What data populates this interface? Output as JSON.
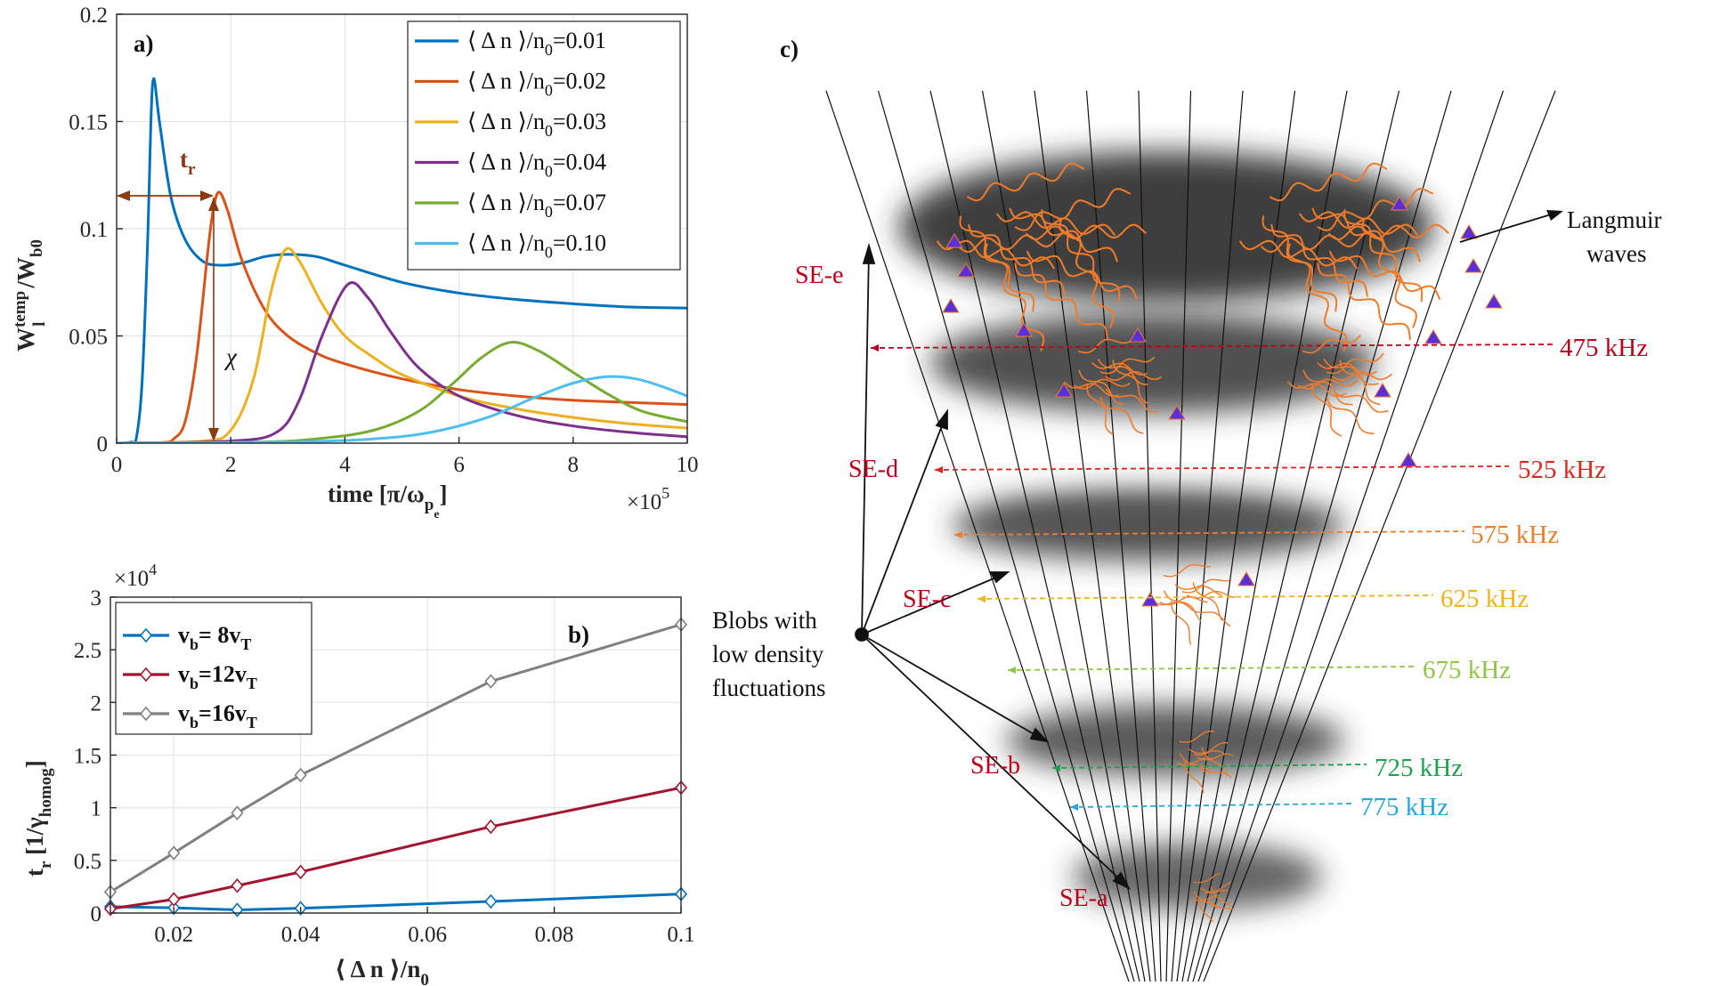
{
  "chart_data": [
    {
      "panel": "a)",
      "type": "line",
      "xlabel": "time [π/ω",
      "xlabel_sub": "p",
      "xlabel_subsub": "e",
      "xlabel_end": "]",
      "ylabel": "W",
      "ylabel_sup": "temp",
      "ylabel_sub": "l",
      "ylabel_den": "/W",
      "ylabel_den_sub": "b0",
      "x_exponent_base": "×10",
      "x_exponent": "5",
      "xlim": [
        0,
        10
      ],
      "ylim": [
        0,
        0.2
      ],
      "xticks": [
        "0",
        "2",
        "4",
        "6",
        "8",
        "10"
      ],
      "yticks": [
        "0",
        "0.05",
        "0.1",
        "0.15",
        "0.2"
      ],
      "annotations": {
        "tr": "t",
        "tr_sub": "r",
        "chi": "χ"
      },
      "series": [
        {
          "name": "⟨ Δ n ⟩/n",
          "sub": "0",
          "value_text": "=0.01",
          "color": "#0072BD",
          "points": [
            [
              0,
              0
            ],
            [
              0.25,
              0.0005
            ],
            [
              0.35,
              0.003
            ],
            [
              0.45,
              0.03
            ],
            [
              0.55,
              0.1
            ],
            [
              0.6,
              0.15
            ],
            [
              0.65,
              0.17
            ],
            [
              0.75,
              0.15
            ],
            [
              0.95,
              0.115
            ],
            [
              1.2,
              0.095
            ],
            [
              1.5,
              0.085
            ],
            [
              1.8,
              0.083
            ],
            [
              2.2,
              0.084
            ],
            [
              2.6,
              0.087
            ],
            [
              3.0,
              0.088
            ],
            [
              3.5,
              0.087
            ],
            [
              4.0,
              0.083
            ],
            [
              5.0,
              0.075
            ],
            [
              6.0,
              0.07
            ],
            [
              7.0,
              0.067
            ],
            [
              8.0,
              0.065
            ],
            [
              9.0,
              0.0635
            ],
            [
              10.0,
              0.063
            ]
          ]
        },
        {
          "name": "⟨ Δ n ⟩/n",
          "sub": "0",
          "value_text": "=0.02",
          "color": "#D95319",
          "points": [
            [
              0,
              0
            ],
            [
              0.8,
              0.0003
            ],
            [
              1.0,
              0.002
            ],
            [
              1.2,
              0.01
            ],
            [
              1.4,
              0.04
            ],
            [
              1.6,
              0.09
            ],
            [
              1.7,
              0.11
            ],
            [
              1.8,
              0.117
            ],
            [
              1.95,
              0.108
            ],
            [
              2.2,
              0.085
            ],
            [
              2.6,
              0.062
            ],
            [
              3.0,
              0.05
            ],
            [
              3.5,
              0.042
            ],
            [
              4.0,
              0.037
            ],
            [
              5.0,
              0.03
            ],
            [
              6.0,
              0.025
            ],
            [
              7.0,
              0.022
            ],
            [
              8.0,
              0.02
            ],
            [
              9.0,
              0.019
            ],
            [
              10.0,
              0.018
            ]
          ]
        },
        {
          "name": "⟨ Δ n ⟩/n",
          "sub": "0",
          "value_text": "=0.03",
          "color": "#EDB120",
          "points": [
            [
              0,
              0
            ],
            [
              1.5,
              0.001
            ],
            [
              2.0,
              0.006
            ],
            [
              2.4,
              0.03
            ],
            [
              2.7,
              0.07
            ],
            [
              2.95,
              0.09
            ],
            [
              3.2,
              0.085
            ],
            [
              3.6,
              0.065
            ],
            [
              4.0,
              0.05
            ],
            [
              4.5,
              0.04
            ],
            [
              5.0,
              0.032
            ],
            [
              6.0,
              0.022
            ],
            [
              7.0,
              0.016
            ],
            [
              8.0,
              0.012
            ],
            [
              9.0,
              0.009
            ],
            [
              10.0,
              0.007
            ]
          ]
        },
        {
          "name": "⟨ Δ n ⟩/n",
          "sub": "0",
          "value_text": "=0.04",
          "color": "#7E2F8E",
          "points": [
            [
              0,
              0
            ],
            [
              2.0,
              0.001
            ],
            [
              2.8,
              0.005
            ],
            [
              3.2,
              0.02
            ],
            [
              3.6,
              0.05
            ],
            [
              4.05,
              0.074
            ],
            [
              4.4,
              0.068
            ],
            [
              4.8,
              0.052
            ],
            [
              5.3,
              0.035
            ],
            [
              6.0,
              0.022
            ],
            [
              7.0,
              0.013
            ],
            [
              8.0,
              0.008
            ],
            [
              9.0,
              0.005
            ],
            [
              10.0,
              0.003
            ]
          ]
        },
        {
          "name": "⟨ Δ n ⟩/n",
          "sub": "0",
          "value_text": "=0.07",
          "color": "#77AC30",
          "points": [
            [
              0,
              0
            ],
            [
              2.5,
              0.0005
            ],
            [
              3.5,
              0.002
            ],
            [
              4.5,
              0.006
            ],
            [
              5.3,
              0.015
            ],
            [
              5.9,
              0.028
            ],
            [
              6.4,
              0.04
            ],
            [
              6.9,
              0.047
            ],
            [
              7.4,
              0.043
            ],
            [
              8.0,
              0.033
            ],
            [
              8.6,
              0.023
            ],
            [
              9.2,
              0.015
            ],
            [
              10.0,
              0.01
            ]
          ]
        },
        {
          "name": "⟨ Δ n ⟩/n",
          "sub": "0",
          "value_text": "=0.10",
          "color": "#4DBEEE",
          "points": [
            [
              0,
              0
            ],
            [
              3.0,
              0.0005
            ],
            [
              4.5,
              0.002
            ],
            [
              5.5,
              0.005
            ],
            [
              6.5,
              0.012
            ],
            [
              7.3,
              0.021
            ],
            [
              8.0,
              0.028
            ],
            [
              8.6,
              0.031
            ],
            [
              9.1,
              0.03
            ],
            [
              9.6,
              0.026
            ],
            [
              10.0,
              0.022
            ]
          ]
        }
      ]
    },
    {
      "panel": "b)",
      "type": "line",
      "xlabel": "⟨ Δ n ⟩/n",
      "xlabel_sub": "0",
      "ylabel": "t",
      "ylabel_sub": "r",
      "ylabel_rest": " [1/γ",
      "ylabel_rest_sub": "homog",
      "ylabel_end": "]",
      "y_exponent_base": "×10",
      "y_exponent": "4",
      "xlim": [
        0.01,
        0.1
      ],
      "ylim": [
        0,
        30000
      ],
      "xticks": [
        "0.02",
        "0.04",
        "0.06",
        "0.08",
        "0.1"
      ],
      "yticks": [
        "0",
        "0.5",
        "1",
        "1.5",
        "2",
        "2.5",
        "3"
      ],
      "x": [
        0.01,
        0.02,
        0.03,
        0.04,
        0.07,
        0.1
      ],
      "series": [
        {
          "name_prefix": "v",
          "name_sub": "b",
          "name_mid": "=  8v",
          "name_end_sub": "T",
          "color": "#0072BD",
          "values": [
            600,
            500,
            300,
            450,
            1100,
            1800
          ]
        },
        {
          "name_prefix": "v",
          "name_sub": "b",
          "name_mid": "=12v",
          "name_end_sub": "T",
          "color": "#A2142F",
          "values": [
            400,
            1300,
            2600,
            3900,
            8200,
            11900
          ]
        },
        {
          "name_prefix": "v",
          "name_sub": "b",
          "name_mid": "=16v",
          "name_end_sub": "T",
          "color": "#808080",
          "values": [
            2000,
            5700,
            9500,
            13100,
            22000,
            27400
          ]
        }
      ]
    }
  ],
  "diagram": {
    "panel": "c)",
    "blob_caption": [
      "Blobs with",
      "low density",
      "fluctuations"
    ],
    "langmuir_caption": [
      "Langmuir",
      "waves"
    ],
    "sources": [
      "SE-e",
      "SE-d",
      "SE-c",
      "SE-b",
      "SE-a"
    ],
    "frequencies": [
      {
        "label": "475 kHz",
        "color": "#c0001a"
      },
      {
        "label": "525 kHz",
        "color": "#e0231e"
      },
      {
        "label": "575 kHz",
        "color": "#ee7d2a"
      },
      {
        "label": "625 kHz",
        "color": "#f2b21c"
      },
      {
        "label": "675 kHz",
        "color": "#8dc63f"
      },
      {
        "label": "725 kHz",
        "color": "#1aa34a"
      },
      {
        "label": "775 kHz",
        "color": "#22a8e0"
      }
    ]
  }
}
